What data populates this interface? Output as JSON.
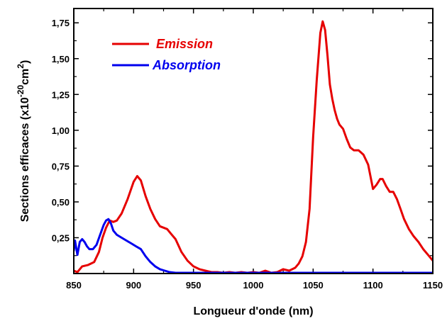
{
  "chart_data": {
    "type": "line",
    "xlabel": "Longueur d'onde (nm)",
    "ylabel_main": "Sections efficaces (x10",
    "ylabel_sup1": "-20",
    "ylabel_mid": "cm",
    "ylabel_sup2": "2",
    "ylabel_end": ")",
    "xlim": [
      850,
      1150
    ],
    "ylim": [
      0,
      1.85
    ],
    "xticks": [
      850,
      900,
      950,
      1000,
      1050,
      1100,
      1150
    ],
    "yticks": [
      0.25,
      0.5,
      0.75,
      1.0,
      1.25,
      1.5,
      1.75
    ],
    "ytick_labels": [
      "0,25",
      "0,50",
      "0,75",
      "1,00",
      "1,25",
      "1,50",
      "1,75"
    ],
    "legend_position": "top-left",
    "grid": false,
    "series": [
      {
        "name": "Emission",
        "color": "#e60000",
        "x": [
          850,
          853,
          857,
          862,
          867,
          871,
          874,
          877,
          880,
          883,
          886,
          890,
          895,
          900,
          903,
          906,
          910,
          914,
          918,
          922,
          925,
          928,
          931,
          935,
          940,
          945,
          950,
          955,
          960,
          965,
          970,
          975,
          980,
          985,
          990,
          995,
          1000,
          1005,
          1010,
          1015,
          1020,
          1025,
          1030,
          1035,
          1038,
          1041,
          1044,
          1047,
          1050,
          1053,
          1056,
          1058,
          1060,
          1062,
          1064,
          1066,
          1068,
          1070,
          1072,
          1075,
          1078,
          1081,
          1084,
          1088,
          1092,
          1096,
          1100,
          1103,
          1106,
          1108,
          1111,
          1114,
          1117,
          1120,
          1123,
          1126,
          1130,
          1134,
          1138,
          1142,
          1146,
          1150
        ],
        "y": [
          0.02,
          0.01,
          0.05,
          0.06,
          0.08,
          0.15,
          0.25,
          0.32,
          0.37,
          0.36,
          0.37,
          0.42,
          0.52,
          0.64,
          0.68,
          0.65,
          0.54,
          0.45,
          0.38,
          0.33,
          0.32,
          0.31,
          0.28,
          0.24,
          0.15,
          0.09,
          0.05,
          0.03,
          0.02,
          0.01,
          0.01,
          0.0,
          0.01,
          0.0,
          0.01,
          0.0,
          0.01,
          0.0,
          0.02,
          0.0,
          0.01,
          0.03,
          0.02,
          0.04,
          0.07,
          0.12,
          0.22,
          0.45,
          0.95,
          1.35,
          1.68,
          1.76,
          1.7,
          1.52,
          1.32,
          1.22,
          1.14,
          1.08,
          1.04,
          1.01,
          0.94,
          0.88,
          0.86,
          0.86,
          0.83,
          0.76,
          0.59,
          0.62,
          0.66,
          0.66,
          0.61,
          0.57,
          0.57,
          0.52,
          0.45,
          0.38,
          0.31,
          0.26,
          0.22,
          0.17,
          0.13,
          0.09
        ]
      },
      {
        "name": "Absorption",
        "color": "#0000ee",
        "x": [
          850,
          851,
          853,
          855,
          857,
          859,
          861,
          863,
          866,
          869,
          872,
          875,
          877,
          879,
          881,
          883,
          886,
          890,
          894,
          898,
          902,
          906,
          910,
          914,
          918,
          922,
          926,
          930,
          935,
          940,
          945,
          950,
          960,
          975,
          1000,
          1050,
          1100,
          1150
        ],
        "y": [
          0.16,
          0.23,
          0.13,
          0.22,
          0.24,
          0.22,
          0.19,
          0.17,
          0.17,
          0.2,
          0.27,
          0.34,
          0.37,
          0.38,
          0.35,
          0.3,
          0.27,
          0.25,
          0.23,
          0.21,
          0.19,
          0.17,
          0.12,
          0.08,
          0.05,
          0.03,
          0.02,
          0.01,
          0.005,
          0.0,
          0.0,
          0.0,
          0.0,
          0.0,
          0.0,
          0.0,
          0.0,
          0.0
        ]
      }
    ]
  }
}
